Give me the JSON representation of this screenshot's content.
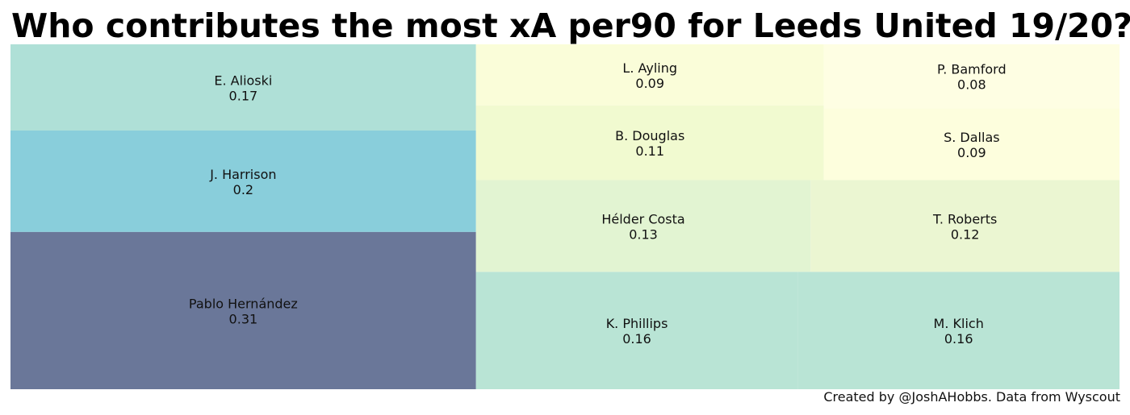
{
  "chart_data": {
    "type": "treemap",
    "title": "Who contributes the most xA per90 for Leeds United 19/20?",
    "items": [
      {
        "name": "Pablo Hernández",
        "value": 0.31,
        "color": "#6a7799"
      },
      {
        "name": "J. Harrison",
        "value": 0.2,
        "color": "#89cedb"
      },
      {
        "name": "E. Alioski",
        "value": 0.17,
        "color": "#afe0d7"
      },
      {
        "name": "K. Phillips",
        "value": 0.16,
        "color": "#b9e4d5"
      },
      {
        "name": "M. Klich",
        "value": 0.16,
        "color": "#b9e4d5"
      },
      {
        "name": "Hélder Costa",
        "value": 0.13,
        "color": "#e2f4d2"
      },
      {
        "name": "T. Roberts",
        "value": 0.12,
        "color": "#ebf6d2"
      },
      {
        "name": "B. Douglas",
        "value": 0.11,
        "color": "#f1fad0"
      },
      {
        "name": "L. Ayling",
        "value": 0.09,
        "color": "#fafdd9"
      },
      {
        "name": "S. Dallas",
        "value": 0.09,
        "color": "#fdfedd"
      },
      {
        "name": "P. Bamford",
        "value": 0.08,
        "color": "#fefee3"
      }
    ],
    "credit": "Created by @JoshAHobbs. Data from Wyscout"
  }
}
